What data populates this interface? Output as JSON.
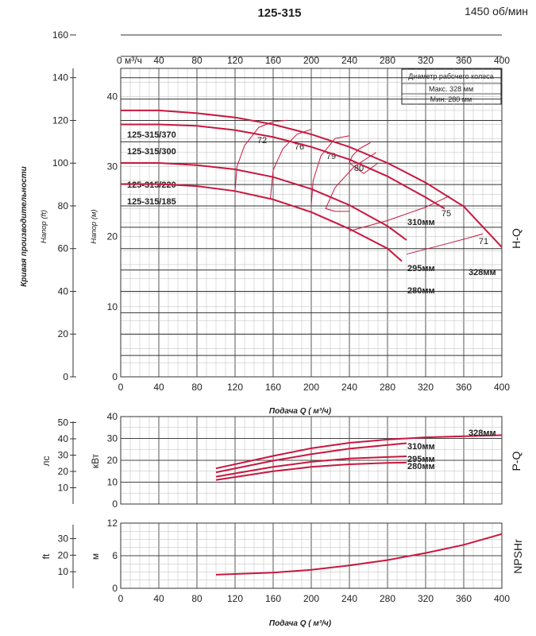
{
  "header": {
    "title": "125-315",
    "speed": "1450 об/мин"
  },
  "labels": {
    "left_vertical": "Кривая производительности",
    "head_ft": "Напор (ft)",
    "head_m": "Напор (м)",
    "x_label_1": "Подача Q ( м³/ч)",
    "x_label_2": "Подача Q ( м³/ч)",
    "top_axis_unit": "0 м³/ч",
    "power_lc": "лс",
    "power_kw": "кВт",
    "npsh_ft": "ft",
    "npsh_m": "м",
    "side_hq": "H-Q",
    "side_pq": "P-Q",
    "side_npsh": "NPSHr"
  },
  "legend": {
    "title": "Диаметр рабочего колеса",
    "max": "Макс. 328  мм",
    "min": "Мин.  280  мм"
  },
  "chart_data": [
    {
      "type": "line",
      "name": "H-Q",
      "xlim": [
        0,
        400
      ],
      "ylim_m": [
        0,
        44
      ],
      "ylim_ft": [
        0,
        160
      ],
      "x_ticks": [
        0,
        40,
        80,
        120,
        160,
        200,
        240,
        280,
        320,
        360,
        400
      ],
      "top_ticks": [
        40,
        80,
        120,
        160,
        200,
        240,
        280,
        320,
        360,
        400
      ],
      "y_ticks_m": [
        0,
        10,
        20,
        30,
        40
      ],
      "y_ticks_ft": [
        0,
        20,
        40,
        60,
        80,
        100,
        120,
        140,
        160
      ],
      "grid": true,
      "series": [
        {
          "name": "125-315/370",
          "label_right": "328мм",
          "x": [
            0,
            40,
            80,
            120,
            160,
            200,
            240,
            280,
            320,
            360,
            400
          ],
          "y": [
            38,
            38,
            37.6,
            37,
            36,
            34.6,
            32.8,
            30.5,
            27.7,
            24.3,
            18.5
          ]
        },
        {
          "name": "125-315/300",
          "label_right": "310мм",
          "x": [
            0,
            40,
            80,
            120,
            160,
            200,
            240,
            280,
            320,
            340
          ],
          "y": [
            36,
            36,
            35.8,
            35.2,
            34.2,
            32.8,
            31,
            28.6,
            25.6,
            24
          ]
        },
        {
          "name": "125-315/220",
          "label_right": "295мм",
          "x": [
            0,
            40,
            80,
            120,
            160,
            200,
            240,
            280,
            300
          ],
          "y": [
            30.5,
            30.5,
            30.2,
            29.6,
            28.5,
            26.8,
            24.5,
            21.5,
            19.5
          ]
        },
        {
          "name": "125-315/185",
          "label_right": "280мм",
          "x": [
            0,
            40,
            80,
            120,
            160,
            200,
            240,
            280,
            295
          ],
          "y": [
            27.5,
            27.5,
            27.2,
            26.5,
            25.3,
            23.5,
            21.1,
            18.3,
            16.5
          ]
        }
      ],
      "efficiency": [
        {
          "label": "72",
          "x": [
            120,
            122,
            130,
            145,
            160,
            175
          ],
          "y": [
            26.5,
            30,
            33,
            35.6,
            36.4,
            36.6
          ]
        },
        {
          "label": "76",
          "x": [
            157,
            160,
            170,
            185,
            200
          ],
          "y": [
            25.3,
            29.5,
            32.5,
            34.6,
            35.3
          ]
        },
        {
          "label": "79",
          "x": [
            200,
            202,
            210,
            225,
            240
          ],
          "y": [
            24.5,
            28,
            31.5,
            34,
            34.4
          ]
        },
        {
          "label": "80",
          "x": [
            270,
            255,
            240,
            243,
            250,
            262
          ],
          "y": [
            30.5,
            29,
            30.5,
            31.5,
            32.5,
            33.4
          ]
        },
        {
          "label": "80",
          "x": [
            268,
            245,
            225,
            215,
            225,
            240
          ],
          "y": [
            32,
            30,
            27,
            24,
            23.6,
            23.6
          ]
        },
        {
          "label": "75",
          "x": [
            240,
            280,
            320,
            345
          ],
          "y": [
            20.8,
            22.3,
            24.2,
            25.8
          ]
        },
        {
          "label": "71",
          "x": [
            300,
            340,
            370,
            380
          ],
          "y": [
            17.5,
            18.9,
            20,
            20.4
          ]
        }
      ]
    },
    {
      "type": "line",
      "name": "P-Q",
      "xlim": [
        0,
        400
      ],
      "ylim_kw": [
        0,
        40
      ],
      "y_ticks_kw": [
        0,
        10,
        20,
        30,
        40
      ],
      "y_ticks_hp": [
        10,
        20,
        30,
        40,
        50
      ],
      "series": [
        {
          "name": "328мм",
          "x": [
            100,
            160,
            200,
            240,
            280,
            320,
            360,
            400
          ],
          "y": [
            16.3,
            22,
            25.5,
            28,
            29.5,
            30.5,
            31,
            31.5
          ]
        },
        {
          "name": "310мм",
          "x": [
            100,
            160,
            200,
            240,
            280,
            300
          ],
          "y": [
            14.5,
            19.8,
            22.8,
            25.3,
            27,
            27.8
          ]
        },
        {
          "name": "295мм",
          "x": [
            100,
            160,
            200,
            240,
            280,
            300
          ],
          "y": [
            12.5,
            17,
            19.3,
            20.8,
            21.5,
            21.8
          ]
        },
        {
          "name": "280мм",
          "x": [
            100,
            160,
            200,
            240,
            280,
            300
          ],
          "y": [
            11,
            15,
            17,
            18.2,
            18.8,
            19
          ]
        }
      ]
    },
    {
      "type": "line",
      "name": "NPSHr",
      "xlim": [
        0,
        400
      ],
      "ylim_m": [
        0,
        12
      ],
      "y_ticks_m": [
        0,
        6,
        12
      ],
      "y_ticks_ft": [
        10,
        20,
        30
      ],
      "series": [
        {
          "name": "NPSHr",
          "x": [
            100,
            160,
            200,
            240,
            280,
            320,
            360,
            400
          ],
          "y": [
            2.5,
            2.9,
            3.4,
            4.2,
            5.2,
            6.5,
            8,
            10
          ]
        }
      ]
    }
  ]
}
